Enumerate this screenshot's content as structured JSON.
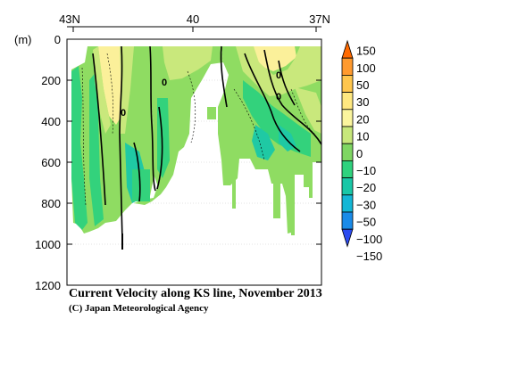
{
  "chart_data": {
    "type": "heatmap",
    "title": "Current Velocity along KS line, November 2013",
    "credit": "(C) Japan Meteorological Agency",
    "y_unit": "(m)",
    "y_ticks": [
      0,
      200,
      400,
      600,
      800,
      1000,
      1200
    ],
    "ylim": [
      0,
      1200
    ],
    "x_ticks": [
      "43N",
      "40",
      "37N"
    ],
    "xlim_lat": [
      43,
      37
    ],
    "contour_labels": [
      "0",
      "0",
      "0",
      "0"
    ],
    "colorbar": {
      "labels": [
        "150",
        "100",
        "50",
        "30",
        "20",
        "10",
        "0",
        "−10",
        "−20",
        "−30",
        "−50",
        "−100",
        "−150"
      ],
      "colors": [
        "#ff6a00",
        "#ff9a2e",
        "#ffc64d",
        "#ffe880",
        "#fbf59e",
        "#c7e77b",
        "#7fd663",
        "#2fd27e",
        "#19c7a7",
        "#14b7d6",
        "#1a8be8",
        "#2b4bf0"
      ]
    },
    "colors": {
      "lightgreen": "#8fdc62",
      "green": "#33d27c",
      "yellow": "#fbf09a",
      "yellowgreen": "#c9e87c",
      "teal": "#1fc9a4"
    }
  }
}
